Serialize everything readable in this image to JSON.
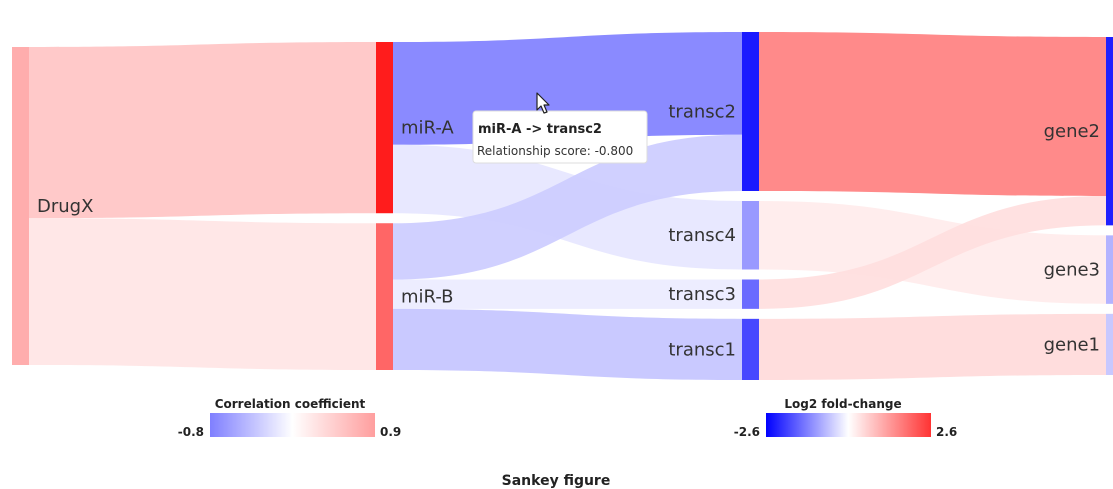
{
  "chart_data": {
    "type": "sankey",
    "caption": "Sankey figure",
    "nodes": [
      {
        "id": "DrugX",
        "label": "DrugX",
        "layer": 0,
        "color": "#ffadad"
      },
      {
        "id": "miR-A",
        "label": "miR-A",
        "layer": 1,
        "color": "#ff1c1c"
      },
      {
        "id": "miR-B",
        "label": "miR-B",
        "layer": 1,
        "color": "#ff6666"
      },
      {
        "id": "transc2",
        "label": "transc2",
        "layer": 2,
        "color": "#1a1aff"
      },
      {
        "id": "transc4",
        "label": "transc4",
        "layer": 2,
        "color": "#9999ff"
      },
      {
        "id": "transc3",
        "label": "transc3",
        "layer": 2,
        "color": "#6a6aff"
      },
      {
        "id": "transc1",
        "label": "transc1",
        "layer": 2,
        "color": "#4747ff"
      },
      {
        "id": "gene2",
        "label": "gene2",
        "layer": 3,
        "color": "#2020ff"
      },
      {
        "id": "gene3",
        "label": "gene3",
        "layer": 3,
        "color": "#b3b3ff"
      },
      {
        "id": "gene1",
        "label": "gene1",
        "layer": 3,
        "color": "#c8c8ff"
      }
    ],
    "links": [
      {
        "source": "DrugX",
        "target": "miR-A",
        "value": 7.0,
        "color": "#ffc4c4"
      },
      {
        "source": "DrugX",
        "target": "miR-B",
        "value": 6.0,
        "color": "#ffe5e5"
      },
      {
        "source": "miR-A",
        "target": "transc2",
        "value": 4.2,
        "color": "#8080ff"
      },
      {
        "source": "miR-A",
        "target": "transc4",
        "value": 2.8,
        "color": "#e6e6ff"
      },
      {
        "source": "miR-B",
        "target": "transc2",
        "value": 2.3,
        "color": "#ccccff"
      },
      {
        "source": "miR-B",
        "target": "transc3",
        "value": 1.2,
        "color": "#ececff"
      },
      {
        "source": "miR-B",
        "target": "transc1",
        "value": 2.5,
        "color": "#c4c4ff"
      },
      {
        "source": "transc2",
        "target": "gene2",
        "value": 6.5,
        "color": "#ff8080"
      },
      {
        "source": "transc4",
        "target": "gene3",
        "value": 2.8,
        "color": "#ffecec"
      },
      {
        "source": "transc3",
        "target": "gene2",
        "value": 1.2,
        "color": "#ffdede"
      },
      {
        "source": "transc1",
        "target": "gene1",
        "value": 2.5,
        "color": "#ffdada"
      }
    ],
    "legends": [
      {
        "title": "Correlation coefficient",
        "min": "-0.8",
        "max": "0.9",
        "gradient": [
          "#7f7fff",
          "#ffffff",
          "#ff9e9e"
        ]
      },
      {
        "title": "Log2 fold-change",
        "min": "-2.6",
        "max": "2.6",
        "gradient": [
          "#0000ff",
          "#ffffff",
          "#ff3333"
        ]
      }
    ],
    "tooltip": {
      "title": "miR-A -> transc2",
      "body": "Relationship score: -0.800"
    }
  }
}
